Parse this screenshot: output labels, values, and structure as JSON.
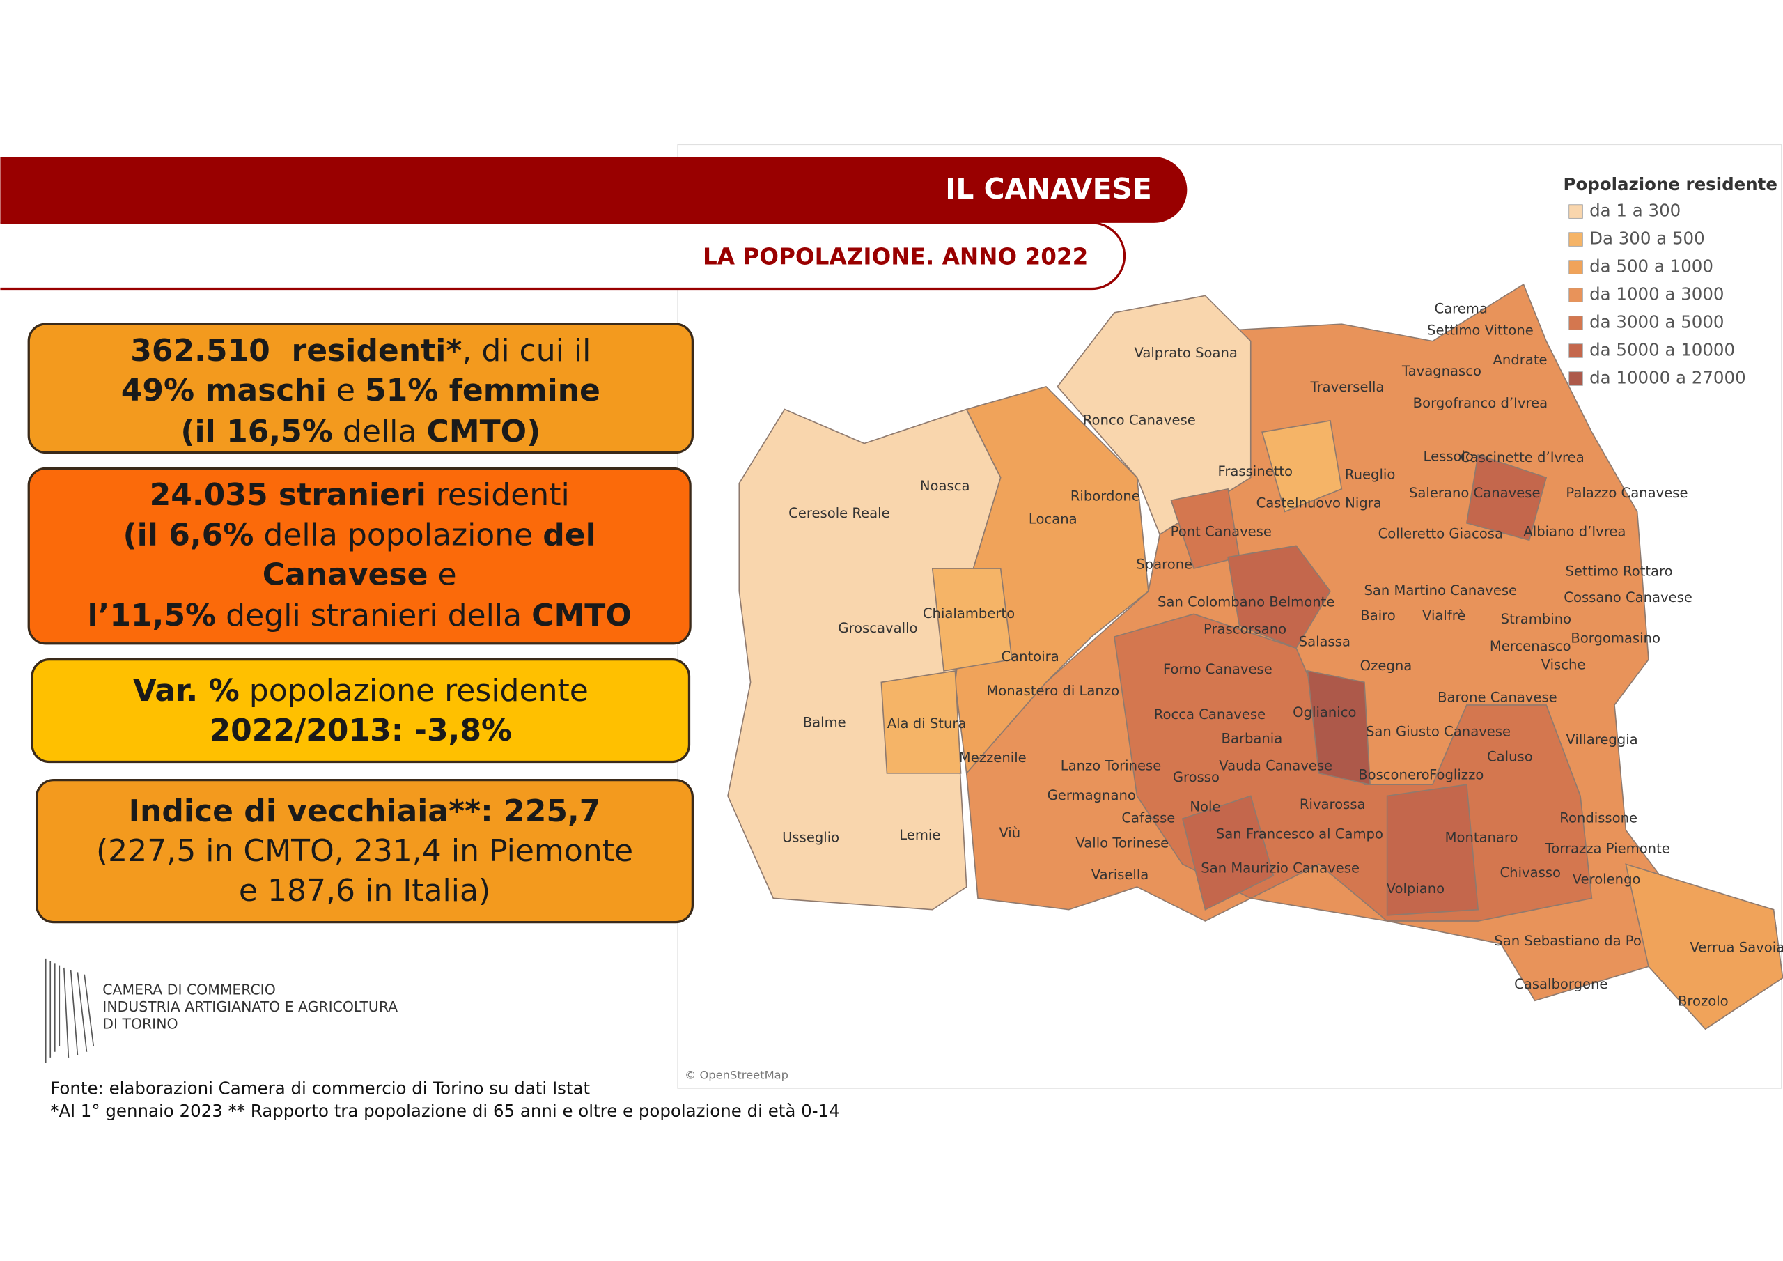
{
  "header": {
    "title": "IL CANAVESE",
    "subtitle": "LA POPOLAZIONE. ANNO 2022"
  },
  "boxes": [
    {
      "color": "#f39a1e",
      "lines": [
        [
          {
            "text": "362.510  residenti*",
            "bold": true
          },
          {
            "text": ", di cui il",
            "bold": false
          }
        ],
        [
          {
            "text": "49% maschi",
            "bold": true
          },
          {
            "text": " e ",
            "bold": false
          },
          {
            "text": "51% femmine",
            "bold": true
          }
        ],
        [
          {
            "text": "(il 16,5%",
            "bold": true
          },
          {
            "text": " della ",
            "bold": false
          },
          {
            "text": "CMTO)",
            "bold": true
          }
        ]
      ]
    },
    {
      "color": "#fb6a0a",
      "lines": [
        [
          {
            "text": "24.035 stranieri",
            "bold": true
          },
          {
            "text": " residenti",
            "bold": false
          }
        ],
        [
          {
            "text": "(il 6,6%",
            "bold": true
          },
          {
            "text": " della popolazione ",
            "bold": false
          },
          {
            "text": "del",
            "bold": true
          }
        ],
        [
          {
            "text": "Canavese",
            "bold": true
          },
          {
            "text": " e",
            "bold": false
          }
        ],
        [
          {
            "text": "l’11,5%",
            "bold": true
          },
          {
            "text": " degli stranieri della ",
            "bold": false
          },
          {
            "text": "CMTO",
            "bold": true
          }
        ]
      ]
    },
    {
      "color": "#ffc000",
      "lines": [
        [
          {
            "text": "Var. %",
            "bold": true
          },
          {
            "text": " popolazione residente",
            "bold": false
          }
        ],
        [
          {
            "text": "2022/2013: -3,8%",
            "bold": true
          }
        ]
      ]
    },
    {
      "color": "#f39a1e",
      "lines": [
        [
          {
            "text": "Indice di vecchiaia**: 225,7",
            "bold": true
          }
        ],
        [
          {
            "text": "(227,5 in CMTO, 231,4 in Piemonte",
            "bold": false
          }
        ],
        [
          {
            "text": "e 187,6 in Italia)",
            "bold": false
          }
        ]
      ]
    }
  ],
  "logo": {
    "lines": [
      "CAMERA DI COMMERCIO",
      "INDUSTRIA ARTIGIANATO E AGRICOLTURA",
      "DI TORINO"
    ]
  },
  "footer": {
    "lines": [
      "Fonte: elaborazioni Camera di commercio di Torino su dati Istat",
      "*Al 1° gennaio 2023 ** Rapporto tra popolazione di 65 anni e oltre e popolazione di età 0-14"
    ]
  },
  "map": {
    "legend": {
      "title": "Popolazione residente",
      "items": [
        {
          "label": "da 1 a 300",
          "color": "#f9d6ad"
        },
        {
          "label": "Da 300 a 500",
          "color": "#f5b467"
        },
        {
          "label": "da 500 a 1000",
          "color": "#f0a35a"
        },
        {
          "label": "da 1000 a 3000",
          "color": "#e8935a"
        },
        {
          "label": "da 3000 a 5000",
          "color": "#d4774f"
        },
        {
          "label": "da 5000 a 10000",
          "color": "#c4674c"
        },
        {
          "label": "da 10000 a 27000",
          "color": "#ad594a"
        }
      ]
    },
    "labels": [
      "Carema",
      "Settimo Vittone",
      "Andrate",
      "Tavagnasco",
      "Valprato Soana",
      "Traversella",
      "Borgofranco d’Ivrea",
      "Ronco Canavese",
      "Lessolo",
      "Cascinette d’Ivrea",
      "Frassinetto",
      "Rueglio",
      "Noasca",
      "Ribordone",
      "Salerano Canavese",
      "Palazzo Canavese",
      "Ceresole Reale",
      "Castelnuovo Nigra",
      "Locana",
      "Pont Canavese",
      "Colleretto Giacosa",
      "Albiano d’Ivrea",
      "Sparone",
      "Settimo Rottaro",
      "San Martino Canavese",
      "Cossano Canavese",
      "San Colombano Belmonte",
      "Chialamberto",
      "Bairo",
      "Vialfrè",
      "Strambino",
      "Groscavallo",
      "Prascorsano",
      "Salassa",
      "Mercenasco",
      "Borgomasino",
      "Cantoira",
      "Ozegna",
      "Forno Canavese",
      "Vische",
      "Monastero di Lanzo",
      "Barone Canavese",
      "Balme",
      "Ala di Stura",
      "Rocca Canavese",
      "Oglianico",
      "San Giusto Canavese",
      "Barbania",
      "Villareggia",
      "Mezzenile",
      "Caluso",
      "Lanzo Torinese",
      "Vauda Canavese",
      "Grosso",
      "Bosconero",
      "Foglizzo",
      "Germagnano",
      "Nole",
      "Rivarossa",
      "Rondissone",
      "Cafasse",
      "Usseglio",
      "Lemie",
      "Viù",
      "San Francesco al Campo",
      "Montanaro",
      "Vallo Torinese",
      "Torrazza Piemonte",
      "San Maurizio Canavese",
      "Chivasso",
      "Verolengo",
      "Varisella",
      "Volpiano",
      "San Sebastiano da Po",
      "Verrua Savoia",
      "Casalborgone",
      "Brozolo"
    ],
    "attribution": "© OpenStreetMap"
  }
}
